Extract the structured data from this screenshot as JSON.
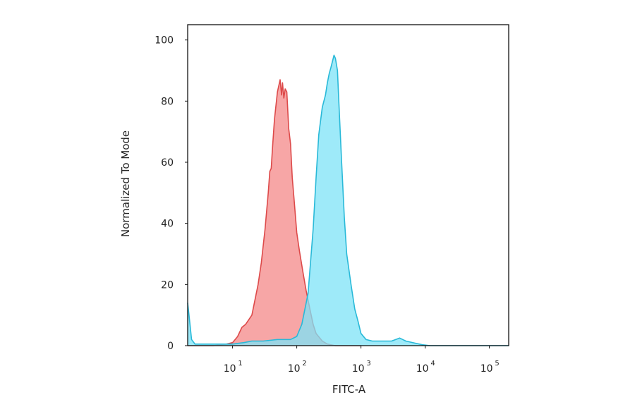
{
  "chart_data": {
    "type": "area",
    "xlabel": "FITC-A",
    "ylabel": "Normalized To Mode",
    "x_scale": "log",
    "xlim": [
      2,
      200000
    ],
    "ylim": [
      0,
      105
    ],
    "x_ticks": [
      {
        "value": 10,
        "base": "10",
        "exp": "1"
      },
      {
        "value": 100,
        "base": "10",
        "exp": "2"
      },
      {
        "value": 1000,
        "base": "10",
        "exp": "3"
      },
      {
        "value": 10000,
        "base": "10",
        "exp": "4"
      },
      {
        "value": 100000,
        "base": "10",
        "exp": "5"
      }
    ],
    "y_ticks": [
      0,
      20,
      40,
      60,
      80,
      100
    ],
    "grid": false,
    "legend": "none",
    "series": [
      {
        "color": "#dd4a4a",
        "fill": "#f7a1a1",
        "x": [
          2,
          2.2,
          2.6,
          3.5,
          5,
          8,
          10,
          12,
          14,
          16,
          20,
          25,
          28,
          32,
          36,
          38,
          40,
          42,
          45,
          50,
          55,
          58,
          60,
          63,
          66,
          70,
          75,
          80,
          85,
          90,
          100,
          110,
          125,
          140,
          160,
          180,
          200,
          250,
          300,
          400,
          500,
          700,
          1000
        ],
        "values": [
          0,
          0,
          0,
          0,
          0,
          0.5,
          1,
          3,
          6,
          7,
          10,
          20,
          27,
          38,
          50,
          57,
          58,
          65,
          74,
          83,
          87,
          82,
          86,
          81,
          84,
          83,
          71,
          66,
          55,
          49,
          37,
          31,
          24,
          18,
          12,
          7,
          4,
          1.5,
          0.5,
          0,
          0,
          0,
          0
        ]
      },
      {
        "color": "#29b9d8",
        "fill": "#7de3f7",
        "x": [
          2,
          2.1,
          2.3,
          2.6,
          3,
          3.5,
          5,
          8,
          10,
          15,
          20,
          30,
          50,
          80,
          100,
          120,
          150,
          180,
          200,
          220,
          250,
          280,
          300,
          320,
          340,
          360,
          380,
          400,
          430,
          450,
          500,
          550,
          600,
          700,
          800,
          900,
          1000,
          1200,
          1500,
          2000,
          3000,
          4000,
          5000,
          7000,
          9000,
          12000,
          20000,
          50000,
          200000
        ],
        "values": [
          14,
          10,
          2,
          0.5,
          0.5,
          0.5,
          0.5,
          0.5,
          0.5,
          1,
          1.5,
          1.5,
          2,
          2,
          3,
          7,
          17,
          38,
          55,
          69,
          78,
          82,
          86,
          89,
          91,
          93,
          95,
          94,
          90,
          81,
          60,
          42,
          30,
          20,
          12,
          8,
          4,
          2,
          1.5,
          1.5,
          1.5,
          2.5,
          1.5,
          0.8,
          0.3,
          0,
          0,
          0,
          0
        ]
      }
    ]
  }
}
